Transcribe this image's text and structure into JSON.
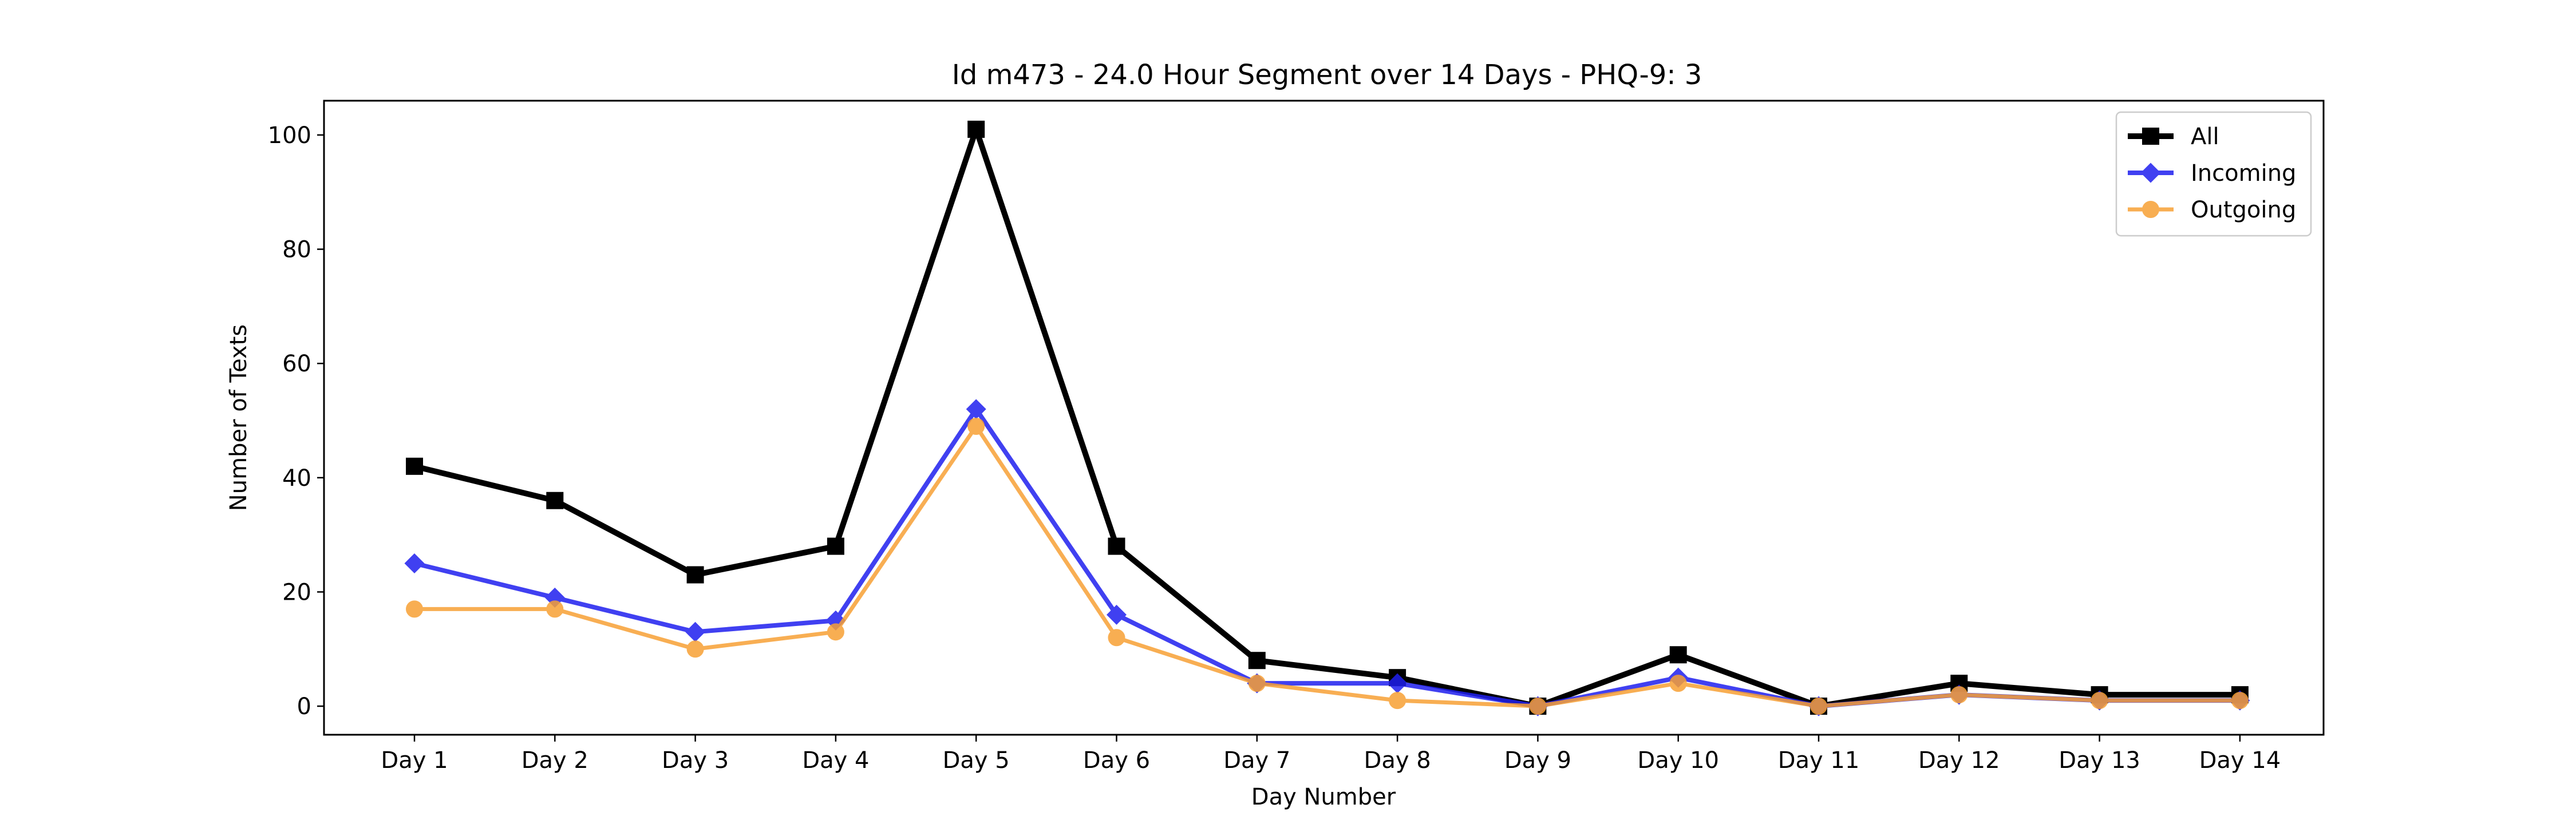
{
  "chart_data": {
    "type": "line",
    "title": "Id m473 - 24.0 Hour Segment over 14 Days - PHQ-9: 3",
    "xlabel": "Day Number",
    "ylabel": "Number of Texts",
    "categories": [
      "Day 1",
      "Day 2",
      "Day 3",
      "Day 4",
      "Day 5",
      "Day 6",
      "Day 7",
      "Day 8",
      "Day 9",
      "Day 10",
      "Day 11",
      "Day 12",
      "Day 13",
      "Day 14"
    ],
    "ylim": [
      -5,
      106
    ],
    "yticks": [
      0,
      20,
      40,
      60,
      80,
      100
    ],
    "grid": false,
    "legend_position": "top-right",
    "series": [
      {
        "name": "All",
        "color": "#000000",
        "marker": "square",
        "values": [
          42,
          36,
          23,
          28,
          101,
          28,
          8,
          5,
          0,
          9,
          0,
          4,
          2,
          2
        ]
      },
      {
        "name": "Incoming",
        "color": "#1f1fef",
        "marker": "diamond",
        "values": [
          25,
          19,
          13,
          15,
          52,
          16,
          4,
          4,
          0,
          5,
          0,
          2,
          1,
          1
        ]
      },
      {
        "name": "Outgoing",
        "color": "#f7a035",
        "marker": "circle",
        "values": [
          17,
          17,
          10,
          13,
          49,
          12,
          4,
          1,
          0,
          4,
          0,
          2,
          1,
          1
        ]
      }
    ]
  }
}
